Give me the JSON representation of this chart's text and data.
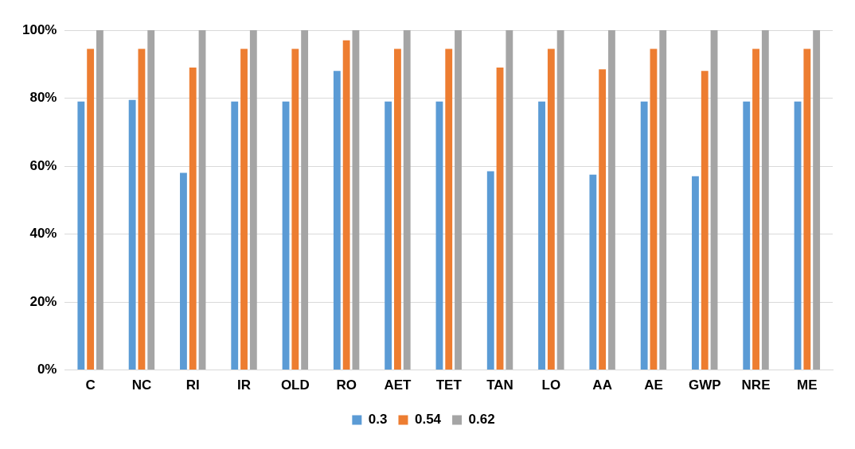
{
  "chart_data": {
    "type": "bar",
    "categories": [
      "C",
      "NC",
      "RI",
      "IR",
      "OLD",
      "RO",
      "AET",
      "TET",
      "TAN",
      "LO",
      "AA",
      "AE",
      "GWP",
      "NRE",
      "ME"
    ],
    "series": [
      {
        "name": "0.3",
        "color": "#5b9bd5",
        "values": [
          79,
          79.5,
          58,
          79,
          79,
          88,
          79,
          79,
          58.5,
          79,
          57.5,
          79,
          57,
          79,
          79
        ]
      },
      {
        "name": "0.54",
        "color": "#ed7d31",
        "values": [
          94.5,
          94.5,
          89,
          94.5,
          94.5,
          97,
          94.5,
          94.5,
          89,
          94.5,
          88.5,
          94.5,
          88,
          94.5,
          94.5
        ]
      },
      {
        "name": "0.62",
        "color": "#a5a5a5",
        "values": [
          100,
          100,
          100,
          100,
          100,
          100,
          100,
          100,
          100,
          100,
          100,
          100,
          100,
          100,
          100
        ]
      }
    ],
    "ylim": [
      0,
      100
    ],
    "yticks": [
      {
        "value": 0,
        "label": "0%"
      },
      {
        "value": 20,
        "label": "20%"
      },
      {
        "value": 40,
        "label": "40%"
      },
      {
        "value": 60,
        "label": "60%"
      },
      {
        "value": 80,
        "label": "80%"
      },
      {
        "value": 100,
        "label": "100%"
      }
    ],
    "grid": "y",
    "legend": "bottom"
  }
}
